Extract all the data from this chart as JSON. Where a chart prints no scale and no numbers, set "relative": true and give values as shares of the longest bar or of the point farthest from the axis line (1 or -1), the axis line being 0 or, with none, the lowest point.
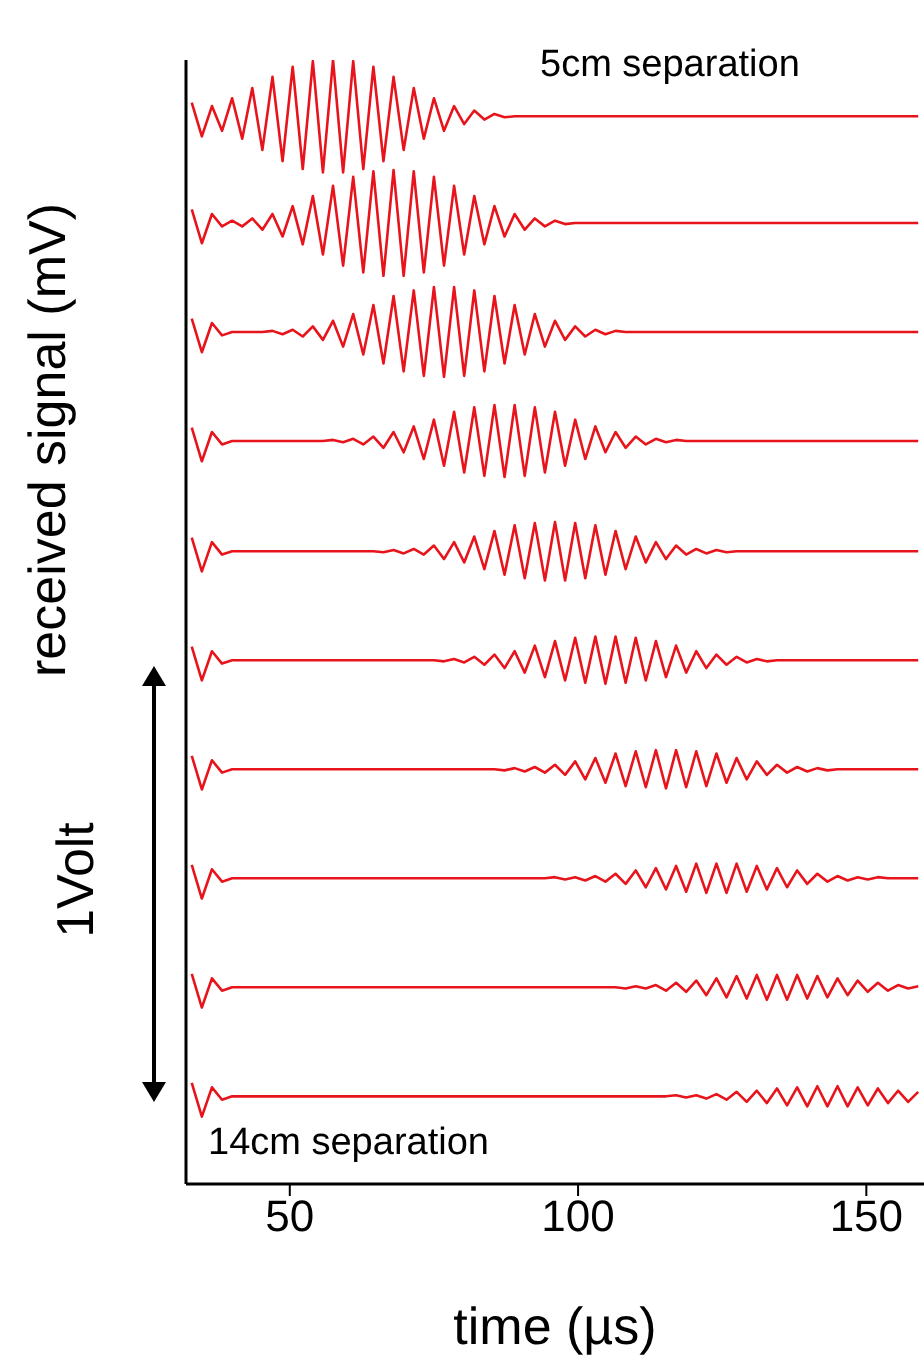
{
  "chart_data": {
    "type": "line",
    "xlabel": "time (µs)",
    "ylabel": "received signal (mV)",
    "relative": true,
    "xlim": [
      32,
      160
    ],
    "xticks": [
      50,
      100,
      150
    ],
    "tick_labels": "x",
    "annotations": [
      "5cm separation",
      "14cm separation",
      "1Volt"
    ],
    "x": [
      33,
      34.75,
      36.5,
      38.25,
      40,
      41.75,
      43.5,
      45.25,
      47,
      48.75,
      50.5,
      52.25,
      54,
      55.75,
      57.5,
      59.25,
      61,
      62.75,
      64.5,
      66.25,
      68,
      69.75,
      71.5,
      73.25,
      75,
      76.75,
      78.5,
      80.25,
      82,
      83.75,
      85.5,
      87.25,
      89,
      90.75,
      92.5,
      94.25,
      96,
      97.75,
      99.5,
      101.25,
      103,
      104.75,
      106.5,
      108.25,
      110,
      111.75,
      113.5,
      115.25,
      117,
      118.75,
      120.5,
      122.25,
      124,
      125.75,
      127.5,
      129.25,
      131,
      132.75,
      134.5,
      136.25,
      138,
      139.75,
      141.5,
      143.25,
      145,
      146.75,
      148.5,
      150.25,
      152,
      153.75,
      155.5,
      157.25,
      159
    ],
    "series": [
      {
        "color": "#e8141c",
        "values": [
          0.962,
          0.932,
          0.959,
          0.937,
          0.966,
          0.93,
          0.975,
          0.92,
          0.985,
          0.91,
          0.994,
          0.903,
          0.999,
          0.9,
          1.0,
          0.9,
          0.999,
          0.903,
          0.994,
          0.91,
          0.985,
          0.92,
          0.975,
          0.93,
          0.966,
          0.937,
          0.959,
          0.943,
          0.955,
          0.947,
          0.952,
          0.949,
          0.95,
          0.95,
          0.95,
          0.95,
          0.95,
          0.95,
          0.95,
          0.95,
          0.95,
          0.95,
          0.95,
          0.95,
          0.95,
          0.95,
          0.95,
          0.95,
          0.95,
          0.95,
          0.95,
          0.95,
          0.95,
          0.95,
          0.95,
          0.95,
          0.95,
          0.95,
          0.95,
          0.95,
          0.95,
          0.95,
          0.95,
          0.95,
          0.95,
          0.95,
          0.95,
          0.95,
          0.95,
          0.95,
          0.95,
          0.95,
          0.95
        ]
      },
      {
        "color": "#e8141c",
        "values": [
          0.867,
          0.837,
          0.863,
          0.852,
          0.857,
          0.852,
          0.859,
          0.849,
          0.863,
          0.843,
          0.87,
          0.836,
          0.879,
          0.827,
          0.888,
          0.817,
          0.896,
          0.811,
          0.901,
          0.808,
          0.902,
          0.808,
          0.901,
          0.811,
          0.896,
          0.817,
          0.888,
          0.827,
          0.879,
          0.836,
          0.87,
          0.843,
          0.863,
          0.849,
          0.859,
          0.852,
          0.857,
          0.854,
          0.855,
          0.855,
          0.855,
          0.855,
          0.855,
          0.855,
          0.855,
          0.855,
          0.855,
          0.855,
          0.855,
          0.855,
          0.855,
          0.855,
          0.855,
          0.855,
          0.855,
          0.855,
          0.855,
          0.855,
          0.855,
          0.855,
          0.855,
          0.855,
          0.855,
          0.855,
          0.855,
          0.855,
          0.855,
          0.855,
          0.855,
          0.855,
          0.855,
          0.855,
          0.855
        ]
      },
      {
        "color": "#e8141c",
        "values": [
          0.77,
          0.74,
          0.766,
          0.755,
          0.758,
          0.758,
          0.758,
          0.758,
          0.759,
          0.756,
          0.76,
          0.754,
          0.763,
          0.751,
          0.768,
          0.745,
          0.774,
          0.738,
          0.782,
          0.73,
          0.79,
          0.723,
          0.795,
          0.719,
          0.798,
          0.718,
          0.798,
          0.719,
          0.795,
          0.723,
          0.79,
          0.73,
          0.782,
          0.738,
          0.774,
          0.745,
          0.768,
          0.751,
          0.763,
          0.754,
          0.76,
          0.756,
          0.759,
          0.758,
          0.758,
          0.758,
          0.758,
          0.758,
          0.758,
          0.758,
          0.758,
          0.758,
          0.758,
          0.758,
          0.758,
          0.758,
          0.758,
          0.758,
          0.758,
          0.758,
          0.758,
          0.758,
          0.758,
          0.758,
          0.758,
          0.758,
          0.758,
          0.758,
          0.758,
          0.758,
          0.758,
          0.758,
          0.758
        ]
      },
      {
        "color": "#e8141c",
        "values": [
          0.673,
          0.643,
          0.669,
          0.658,
          0.661,
          0.661,
          0.661,
          0.661,
          0.661,
          0.661,
          0.661,
          0.661,
          0.661,
          0.661,
          0.662,
          0.66,
          0.663,
          0.658,
          0.665,
          0.655,
          0.669,
          0.651,
          0.674,
          0.645,
          0.68,
          0.639,
          0.687,
          0.633,
          0.691,
          0.63,
          0.693,
          0.629,
          0.693,
          0.63,
          0.691,
          0.633,
          0.687,
          0.639,
          0.68,
          0.645,
          0.674,
          0.651,
          0.669,
          0.655,
          0.665,
          0.658,
          0.663,
          0.66,
          0.662,
          0.661,
          0.661,
          0.661,
          0.661,
          0.661,
          0.661,
          0.661,
          0.661,
          0.661,
          0.661,
          0.661,
          0.661,
          0.661,
          0.661,
          0.661,
          0.661,
          0.661,
          0.661,
          0.661,
          0.661,
          0.661,
          0.661,
          0.661,
          0.661
        ]
      },
      {
        "color": "#e8141c",
        "values": [
          0.575,
          0.545,
          0.571,
          0.56,
          0.563,
          0.563,
          0.563,
          0.563,
          0.563,
          0.563,
          0.563,
          0.563,
          0.563,
          0.563,
          0.563,
          0.563,
          0.563,
          0.563,
          0.563,
          0.562,
          0.564,
          0.561,
          0.565,
          0.56,
          0.568,
          0.556,
          0.571,
          0.553,
          0.576,
          0.547,
          0.581,
          0.542,
          0.586,
          0.539,
          0.588,
          0.537,
          0.589,
          0.537,
          0.588,
          0.539,
          0.586,
          0.542,
          0.581,
          0.547,
          0.576,
          0.553,
          0.571,
          0.556,
          0.568,
          0.56,
          0.565,
          0.561,
          0.564,
          0.562,
          0.563,
          0.563,
          0.563,
          0.563,
          0.563,
          0.563,
          0.563,
          0.563,
          0.563,
          0.563,
          0.563,
          0.563,
          0.563,
          0.563,
          0.563,
          0.563,
          0.563,
          0.563,
          0.563
        ]
      },
      {
        "color": "#e8141c",
        "values": [
          0.478,
          0.448,
          0.474,
          0.463,
          0.466,
          0.466,
          0.466,
          0.466,
          0.466,
          0.466,
          0.466,
          0.466,
          0.466,
          0.466,
          0.466,
          0.466,
          0.466,
          0.466,
          0.466,
          0.466,
          0.466,
          0.466,
          0.466,
          0.466,
          0.466,
          0.465,
          0.467,
          0.464,
          0.469,
          0.462,
          0.471,
          0.459,
          0.474,
          0.455,
          0.479,
          0.451,
          0.483,
          0.448,
          0.486,
          0.446,
          0.487,
          0.445,
          0.487,
          0.446,
          0.486,
          0.448,
          0.483,
          0.451,
          0.479,
          0.455,
          0.474,
          0.459,
          0.471,
          0.462,
          0.469,
          0.464,
          0.467,
          0.465,
          0.466,
          0.466,
          0.466,
          0.466,
          0.466,
          0.466,
          0.466,
          0.466,
          0.466,
          0.466,
          0.466,
          0.466,
          0.466,
          0.466,
          0.466
        ]
      },
      {
        "color": "#e8141c",
        "values": [
          0.381,
          0.351,
          0.377,
          0.366,
          0.369,
          0.369,
          0.369,
          0.369,
          0.369,
          0.369,
          0.369,
          0.369,
          0.369,
          0.369,
          0.369,
          0.369,
          0.369,
          0.369,
          0.369,
          0.369,
          0.369,
          0.369,
          0.369,
          0.369,
          0.369,
          0.369,
          0.369,
          0.369,
          0.369,
          0.369,
          0.369,
          0.368,
          0.37,
          0.367,
          0.371,
          0.366,
          0.373,
          0.364,
          0.376,
          0.36,
          0.379,
          0.357,
          0.383,
          0.354,
          0.385,
          0.353,
          0.386,
          0.352,
          0.386,
          0.353,
          0.385,
          0.354,
          0.383,
          0.357,
          0.379,
          0.36,
          0.376,
          0.364,
          0.373,
          0.366,
          0.371,
          0.367,
          0.37,
          0.368,
          0.369,
          0.369,
          0.369,
          0.369,
          0.369,
          0.369,
          0.369,
          0.369,
          0.369
        ]
      },
      {
        "color": "#e8141c",
        "values": [
          0.284,
          0.254,
          0.28,
          0.269,
          0.272,
          0.272,
          0.272,
          0.272,
          0.272,
          0.272,
          0.272,
          0.272,
          0.272,
          0.272,
          0.272,
          0.272,
          0.272,
          0.272,
          0.272,
          0.272,
          0.272,
          0.272,
          0.272,
          0.272,
          0.272,
          0.272,
          0.272,
          0.272,
          0.272,
          0.272,
          0.272,
          0.272,
          0.272,
          0.272,
          0.272,
          0.272,
          0.273,
          0.271,
          0.273,
          0.27,
          0.274,
          0.269,
          0.276,
          0.267,
          0.279,
          0.264,
          0.281,
          0.262,
          0.283,
          0.26,
          0.285,
          0.259,
          0.285,
          0.259,
          0.285,
          0.26,
          0.283,
          0.262,
          0.281,
          0.264,
          0.279,
          0.267,
          0.276,
          0.269,
          0.274,
          0.27,
          0.273,
          0.271,
          0.273,
          0.272,
          0.272,
          0.272,
          0.272
        ]
      },
      {
        "color": "#e8141c",
        "values": [
          0.187,
          0.157,
          0.183,
          0.172,
          0.175,
          0.175,
          0.175,
          0.175,
          0.175,
          0.175,
          0.175,
          0.175,
          0.175,
          0.175,
          0.175,
          0.175,
          0.175,
          0.175,
          0.175,
          0.175,
          0.175,
          0.175,
          0.175,
          0.175,
          0.175,
          0.175,
          0.175,
          0.175,
          0.175,
          0.175,
          0.175,
          0.175,
          0.175,
          0.175,
          0.175,
          0.175,
          0.175,
          0.175,
          0.175,
          0.175,
          0.175,
          0.175,
          0.175,
          0.174,
          0.176,
          0.174,
          0.177,
          0.172,
          0.179,
          0.171,
          0.181,
          0.168,
          0.183,
          0.166,
          0.185,
          0.165,
          0.186,
          0.164,
          0.186,
          0.164,
          0.186,
          0.165,
          0.185,
          0.166,
          0.183,
          0.168,
          0.181,
          0.171,
          0.179,
          0.172,
          0.177,
          0.174,
          0.176
        ]
      },
      {
        "color": "#e8141c",
        "values": [
          0.09,
          0.06,
          0.086,
          0.075,
          0.078,
          0.078,
          0.078,
          0.078,
          0.078,
          0.078,
          0.078,
          0.078,
          0.078,
          0.078,
          0.078,
          0.078,
          0.078,
          0.078,
          0.078,
          0.078,
          0.078,
          0.078,
          0.078,
          0.078,
          0.078,
          0.078,
          0.078,
          0.078,
          0.078,
          0.078,
          0.078,
          0.078,
          0.078,
          0.078,
          0.078,
          0.078,
          0.078,
          0.078,
          0.078,
          0.078,
          0.078,
          0.078,
          0.078,
          0.078,
          0.078,
          0.078,
          0.078,
          0.078,
          0.079,
          0.077,
          0.079,
          0.076,
          0.08,
          0.075,
          0.082,
          0.073,
          0.083,
          0.072,
          0.085,
          0.07,
          0.086,
          0.069,
          0.087,
          0.069,
          0.087,
          0.069,
          0.086,
          0.07,
          0.085,
          0.072,
          0.083,
          0.073,
          0.082
        ]
      }
    ]
  }
}
